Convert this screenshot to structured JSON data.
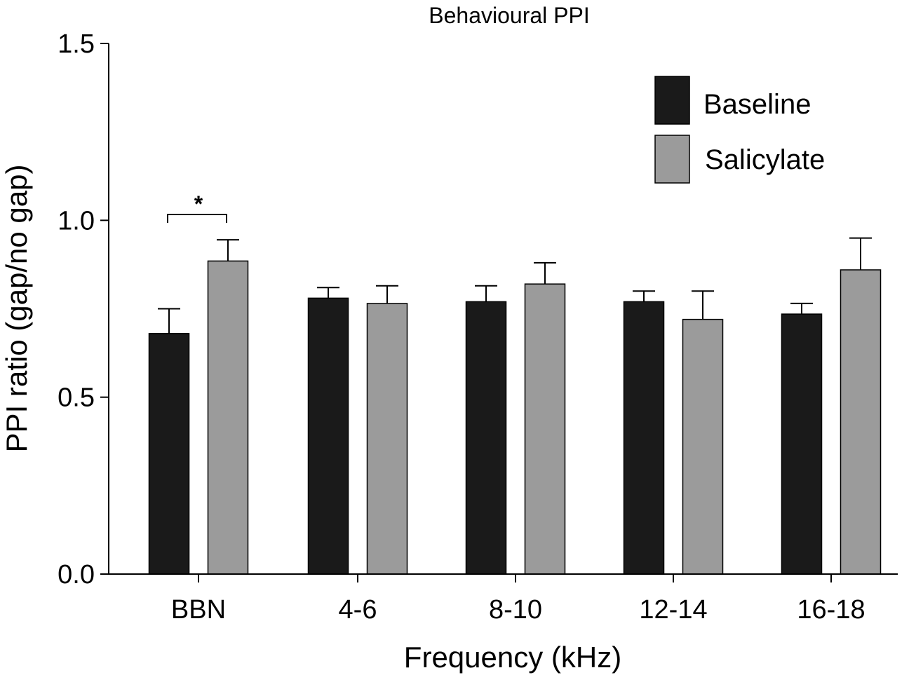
{
  "chart_data": {
    "type": "bar",
    "title": "Behavioural PPI",
    "xlabel": "Frequency (kHz)",
    "ylabel": "PPI ratio (gap/no gap)",
    "ylim": [
      0,
      1.5
    ],
    "yticks": [
      "0.0",
      "0.5",
      "1.0",
      "1.5"
    ],
    "categories": [
      "BBN",
      "4-6",
      "8-10",
      "12-14",
      "16-18"
    ],
    "series": [
      {
        "name": "Baseline",
        "color": "#1a1a1a",
        "values": [
          0.68,
          0.78,
          0.77,
          0.77,
          0.735
        ],
        "errors": [
          0.07,
          0.03,
          0.045,
          0.03,
          0.03
        ]
      },
      {
        "name": "Salicylate",
        "color": "#9b9b9b",
        "values": [
          0.885,
          0.765,
          0.82,
          0.72,
          0.86
        ],
        "errors": [
          0.06,
          0.05,
          0.06,
          0.08,
          0.09
        ]
      }
    ],
    "legend": {
      "position": "top-right"
    },
    "grid": false,
    "annotations": [
      {
        "text": "*",
        "category": "BBN",
        "type": "significance-bracket"
      }
    ]
  }
}
